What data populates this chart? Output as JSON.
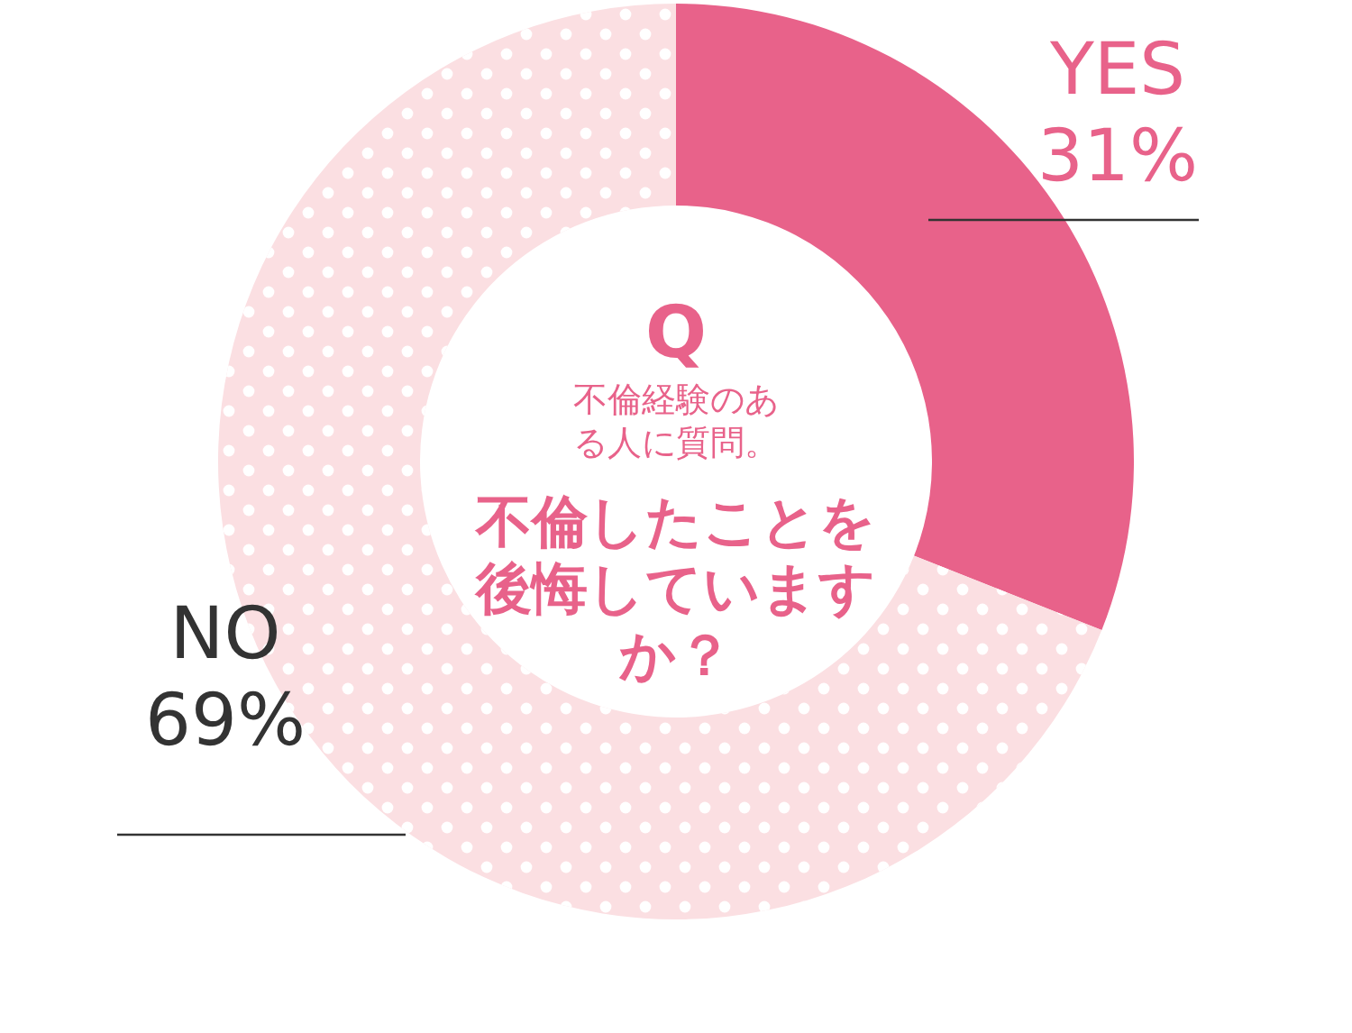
{
  "chart_data": {
    "type": "donut",
    "title": "不倫したことを後悔していますか？",
    "subtitle": "不倫経験のある人に質問。",
    "annotations": [
      "Q"
    ],
    "categories": [
      "YES",
      "NO"
    ],
    "values": [
      31,
      69
    ],
    "colors": [
      "#e8628a",
      "#fbdfe2"
    ],
    "value_labels": [
      "31%",
      "69%"
    ]
  }
}
